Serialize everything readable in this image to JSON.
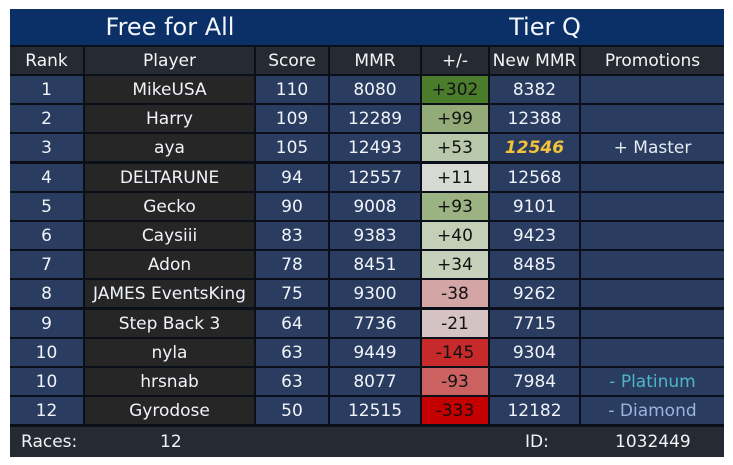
{
  "header": {
    "mode": "Free for All",
    "tier": "Tier Q"
  },
  "columns": [
    "Rank",
    "Player",
    "Score",
    "MMR",
    "+/-",
    "New MMR",
    "Promotions"
  ],
  "rows": [
    {
      "rank": "1",
      "player": "MikeUSA",
      "score": "110",
      "mmr": "8080",
      "delta": "+302",
      "new_mmr": "8382",
      "promotion": "",
      "delta_color": "#4a7c2c"
    },
    {
      "rank": "2",
      "player": "Harry",
      "score": "109",
      "mmr": "12289",
      "delta": "+99",
      "new_mmr": "12388",
      "promotion": "",
      "delta_color": "#93ab78"
    },
    {
      "rank": "3",
      "player": "aya",
      "score": "105",
      "mmr": "12493",
      "delta": "+53",
      "new_mmr": "12546",
      "promotion": "+ Master",
      "delta_color": "#b9c7ab",
      "new_mmr_highlight": true,
      "promotion_style": "master"
    },
    {
      "rank": "4",
      "player": "DELTARUNE",
      "score": "94",
      "mmr": "12557",
      "delta": "+11",
      "new_mmr": "12568",
      "promotion": "",
      "delta_color": "#d7d9d3"
    },
    {
      "rank": "5",
      "player": "Gecko",
      "score": "90",
      "mmr": "9008",
      "delta": "+93",
      "new_mmr": "9101",
      "promotion": "",
      "delta_color": "#9bb282"
    },
    {
      "rank": "6",
      "player": "Caysiii",
      "score": "83",
      "mmr": "9383",
      "delta": "+40",
      "new_mmr": "9423",
      "promotion": "",
      "delta_color": "#c3cfb7"
    },
    {
      "rank": "7",
      "player": "Adon",
      "score": "78",
      "mmr": "8451",
      "delta": "+34",
      "new_mmr": "8485",
      "promotion": "",
      "delta_color": "#c6d1bb"
    },
    {
      "rank": "8",
      "player": "JAMES EventsKing",
      "score": "75",
      "mmr": "9300",
      "delta": "-38",
      "new_mmr": "9262",
      "promotion": "",
      "delta_color": "#d3a5a5"
    },
    {
      "rank": "9",
      "player": "Step Back 3",
      "score": "64",
      "mmr": "7736",
      "delta": "-21",
      "new_mmr": "7715",
      "promotion": "",
      "delta_color": "#d5c2c2"
    },
    {
      "rank": "10",
      "player": "nyla",
      "score": "63",
      "mmr": "9449",
      "delta": "-145",
      "new_mmr": "9304",
      "promotion": "",
      "delta_color": "#c62a2a"
    },
    {
      "rank": "10",
      "player": "hrsnab",
      "score": "63",
      "mmr": "8077",
      "delta": "-93",
      "new_mmr": "7984",
      "promotion": "- Platinum",
      "delta_color": "#cc6161",
      "promotion_style": "plat"
    },
    {
      "rank": "12",
      "player": "Gyrodose",
      "score": "50",
      "mmr": "12515",
      "delta": "-333",
      "new_mmr": "12182",
      "promotion": "- Diamond",
      "delta_color": "#c40000",
      "promotion_style": "dia"
    }
  ],
  "footer": {
    "races_label": "Races:",
    "races_value": "12",
    "id_label": "ID:",
    "id_value": "1032449"
  }
}
